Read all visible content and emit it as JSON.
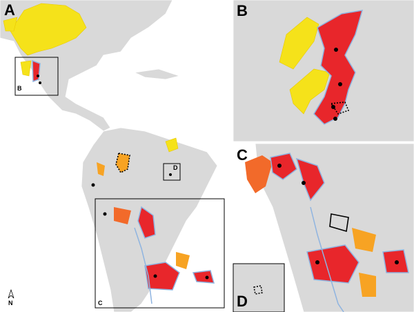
{
  "panel_a": {
    "label": "A",
    "inset_labels": [
      "B",
      "C",
      "D"
    ],
    "north": "N"
  },
  "panel_b": {
    "label": "B"
  },
  "panel_c": {
    "label": "C"
  },
  "panel_d": {
    "label": "D"
  }
}
